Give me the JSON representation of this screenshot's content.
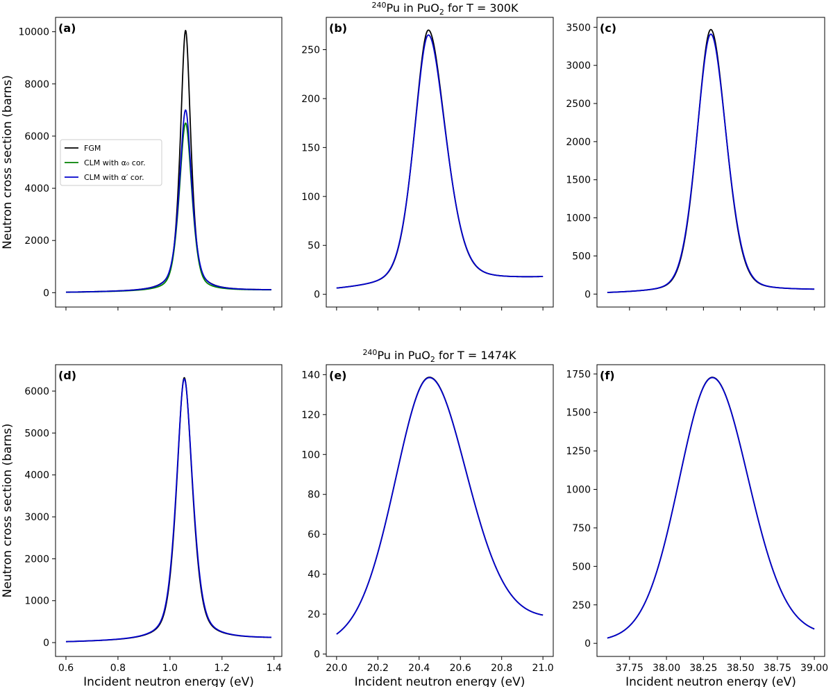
{
  "figure": {
    "row_titles": [
      {
        "iso": "240",
        "pre": "Pu in PuO",
        "sub": "2",
        "post": " for T = 300K"
      },
      {
        "iso": "240",
        "pre": "Pu in PuO",
        "sub": "2",
        "post": " for T = 1474K"
      }
    ],
    "legend": {
      "position": "center-left of panel (a)",
      "entries": [
        {
          "text": "FGM",
          "color": "#000000"
        },
        {
          "text": "CLM with α₀ cor.",
          "color": "#008000"
        },
        {
          "text": "CLM with α′ cor.",
          "color": "#0000cc"
        }
      ]
    }
  },
  "chart_data": [
    {
      "type": "line",
      "panel": "(a)",
      "row": 0,
      "col": 0,
      "xlabel": "",
      "ylabel": "Neutron cross section (barns)",
      "xlim": [
        0.56,
        1.43
      ],
      "ylim": [
        -550,
        10550
      ],
      "xticks": [
        0.6,
        0.8,
        1.0,
        1.2,
        1.4
      ],
      "show_xticklabels": false,
      "yticks": [
        0,
        2000,
        4000,
        6000,
        8000,
        10000
      ],
      "x_range": [
        0.6,
        1.39
      ],
      "series": [
        {
          "name": "FGM",
          "color": "#000000",
          "peak_x": 1.06,
          "peak_y": 10050,
          "width_left": 0.022,
          "width_right": 0.022,
          "base_left": 5,
          "base_right": 90,
          "tail": 0.6
        },
        {
          "name": "CLM with α₀ cor.",
          "color": "#008000",
          "peak_x": 1.06,
          "peak_y": 6500,
          "width_left": 0.026,
          "width_right": 0.026,
          "base_left": 5,
          "base_right": 90,
          "tail": 0.5
        },
        {
          "name": "CLM with α′ cor.",
          "color": "#0000cc",
          "peak_x": 1.06,
          "peak_y": 7000,
          "width_left": 0.026,
          "width_right": 0.026,
          "base_left": 5,
          "base_right": 90,
          "tail": 0.6
        }
      ]
    },
    {
      "type": "line",
      "panel": "(b)",
      "row": 0,
      "col": 1,
      "xlabel": "",
      "ylabel": "",
      "xlim": [
        19.95,
        21.05
      ],
      "ylim": [
        -13,
        283
      ],
      "xticks": [
        20.0,
        20.2,
        20.4,
        20.6,
        20.8,
        21.0
      ],
      "show_xticklabels": false,
      "yticks": [
        0,
        50,
        100,
        150,
        200,
        250
      ],
      "x_range": [
        20.0,
        21.0
      ],
      "series": [
        {
          "name": "FGM",
          "color": "#000000",
          "peak_x": 20.445,
          "peak_y": 270,
          "width_left": 0.072,
          "width_right": 0.088,
          "base_left": 4,
          "base_right": 16,
          "tail": 0.35
        },
        {
          "name": "CLM with α′ cor.",
          "color": "#0000cc",
          "peak_x": 20.445,
          "peak_y": 265,
          "width_left": 0.073,
          "width_right": 0.089,
          "base_left": 4,
          "base_right": 16,
          "tail": 0.35
        }
      ]
    },
    {
      "type": "line",
      "panel": "(c)",
      "row": 0,
      "col": 2,
      "xlabel": "",
      "ylabel": "",
      "xlim": [
        37.53,
        39.07
      ],
      "ylim": [
        -170,
        3630
      ],
      "xticks": [
        37.75,
        38.0,
        38.25,
        38.5,
        38.75,
        39.0
      ],
      "show_xticklabels": false,
      "yticks": [
        0,
        500,
        1000,
        1500,
        2000,
        2500,
        3000,
        3500
      ],
      "x_range": [
        37.6,
        39.0
      ],
      "series": [
        {
          "name": "FGM",
          "color": "#000000",
          "peak_x": 38.3,
          "peak_y": 3470,
          "width_left": 0.097,
          "width_right": 0.107,
          "base_left": 5,
          "base_right": 45,
          "tail": 0.25
        },
        {
          "name": "CLM with α′ cor.",
          "color": "#0000cc",
          "peak_x": 38.3,
          "peak_y": 3410,
          "width_left": 0.099,
          "width_right": 0.109,
          "base_left": 5,
          "base_right": 45,
          "tail": 0.25
        }
      ]
    },
    {
      "type": "line",
      "panel": "(d)",
      "row": 1,
      "col": 0,
      "xlabel": "Incident neutron energy (eV)",
      "ylabel": "Neutron cross section (barns)",
      "xlim": [
        0.56,
        1.43
      ],
      "ylim": [
        -330,
        6630
      ],
      "xticks": [
        0.6,
        0.8,
        1.0,
        1.2,
        1.4
      ],
      "show_xticklabels": true,
      "xticklabels": [
        "0.6",
        "0.8",
        "1.0",
        "1.2",
        "1.4"
      ],
      "yticks": [
        0,
        1000,
        2000,
        3000,
        4000,
        5000,
        6000
      ],
      "x_range": [
        0.6,
        1.39
      ],
      "series": [
        {
          "name": "FGM",
          "color": "#000000",
          "peak_x": 1.055,
          "peak_y": 6320,
          "width_left": 0.032,
          "width_right": 0.034,
          "base_left": 5,
          "base_right": 90,
          "tail": 0.55
        },
        {
          "name": "CLM with α′ cor.",
          "color": "#0000cc",
          "peak_x": 1.055,
          "peak_y": 6290,
          "width_left": 0.033,
          "width_right": 0.035,
          "base_left": 5,
          "base_right": 90,
          "tail": 0.55
        }
      ]
    },
    {
      "type": "line",
      "panel": "(e)",
      "row": 1,
      "col": 1,
      "xlabel": "Incident neutron energy (eV)",
      "ylabel": "",
      "xlim": [
        19.95,
        21.05
      ],
      "ylim": [
        -1.2,
        145
      ],
      "xticks": [
        20.0,
        20.2,
        20.4,
        20.6,
        20.8,
        21.0
      ],
      "show_xticklabels": true,
      "xticklabels": [
        "20.0",
        "20.2",
        "20.4",
        "20.6",
        "20.8",
        "21.0"
      ],
      "yticks": [
        0,
        20,
        40,
        60,
        80,
        100,
        120,
        140
      ],
      "x_range": [
        20.0,
        21.0
      ],
      "series": [
        {
          "name": "FGM",
          "color": "#000000",
          "peak_x": 20.45,
          "peak_y": 138.7,
          "width_left": 0.17,
          "width_right": 0.19,
          "base_left": 4,
          "base_right": 16,
          "tail": 0.15
        },
        {
          "name": "CLM with α′ cor.",
          "color": "#0000cc",
          "peak_x": 20.45,
          "peak_y": 138.5,
          "width_left": 0.17,
          "width_right": 0.19,
          "base_left": 4,
          "base_right": 16,
          "tail": 0.15
        }
      ]
    },
    {
      "type": "line",
      "panel": "(f)",
      "row": 1,
      "col": 2,
      "xlabel": "Incident neutron energy (eV)",
      "ylabel": "",
      "xlim": [
        37.53,
        39.07
      ],
      "ylim": [
        -85,
        1810
      ],
      "xticks": [
        37.75,
        38.0,
        38.25,
        38.5,
        38.75,
        39.0
      ],
      "show_xticklabels": true,
      "xticklabels": [
        "37.75",
        "38.00",
        "38.25",
        "38.50",
        "38.75",
        "39.00"
      ],
      "yticks": [
        0,
        250,
        500,
        750,
        1000,
        1250,
        1500,
        1750
      ],
      "x_range": [
        37.6,
        39.0
      ],
      "series": [
        {
          "name": "FGM",
          "color": "#000000",
          "peak_x": 38.31,
          "peak_y": 1728,
          "width_left": 0.23,
          "width_right": 0.25,
          "base_left": 5,
          "base_right": 40,
          "tail": 0.1
        },
        {
          "name": "CLM with α′ cor.",
          "color": "#0000cc",
          "peak_x": 38.31,
          "peak_y": 1726,
          "width_left": 0.23,
          "width_right": 0.25,
          "base_left": 5,
          "base_right": 40,
          "tail": 0.1
        }
      ]
    }
  ]
}
